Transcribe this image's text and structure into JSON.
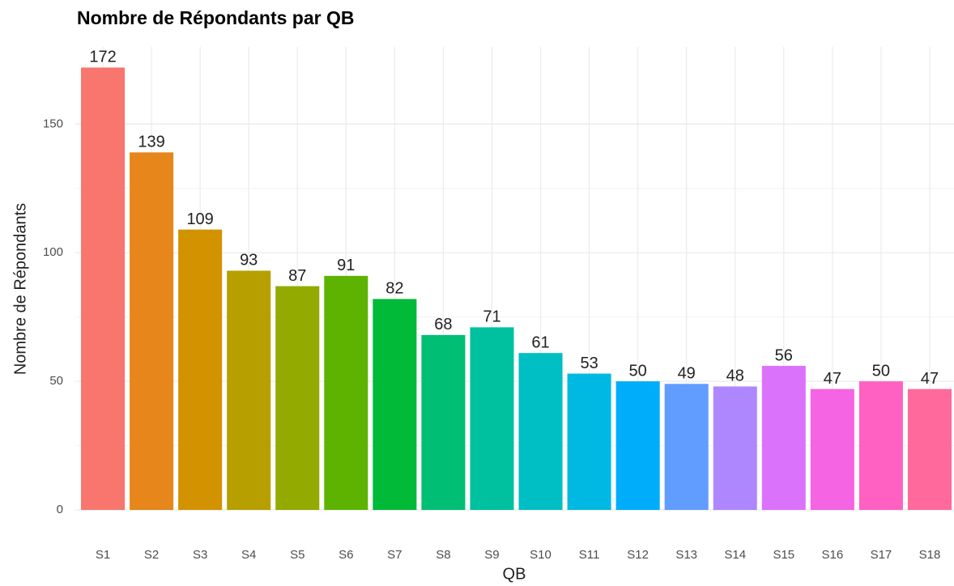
{
  "chart_data": {
    "type": "bar",
    "title": "Nombre de Répondants par QB",
    "x_label": "QB",
    "y_label": "Nombre de Répondants",
    "categories": [
      "S1",
      "S2",
      "S3",
      "S4",
      "S5",
      "S6",
      "S7",
      "S8",
      "S9",
      "S10",
      "S11",
      "S12",
      "S13",
      "S14",
      "S15",
      "S16",
      "S17",
      "S18"
    ],
    "values": [
      172,
      139,
      109,
      93,
      87,
      91,
      82,
      68,
      71,
      61,
      53,
      50,
      49,
      48,
      56,
      47,
      50,
      47
    ],
    "colors": [
      "#F8766D",
      "#E7861B",
      "#D39200",
      "#B79F00",
      "#93AA00",
      "#5EB300",
      "#00BA38",
      "#00BF74",
      "#00C19F",
      "#00BFC4",
      "#00B9E3",
      "#00ADFA",
      "#619CFF",
      "#AE87FF",
      "#DB72FB",
      "#F564E3",
      "#FF61C3",
      "#FF699C"
    ],
    "ylim": [
      0,
      180
    ],
    "yticks": [
      0,
      50,
      100,
      150
    ],
    "minor_yticks": [
      25,
      75,
      125
    ],
    "grid": true
  }
}
